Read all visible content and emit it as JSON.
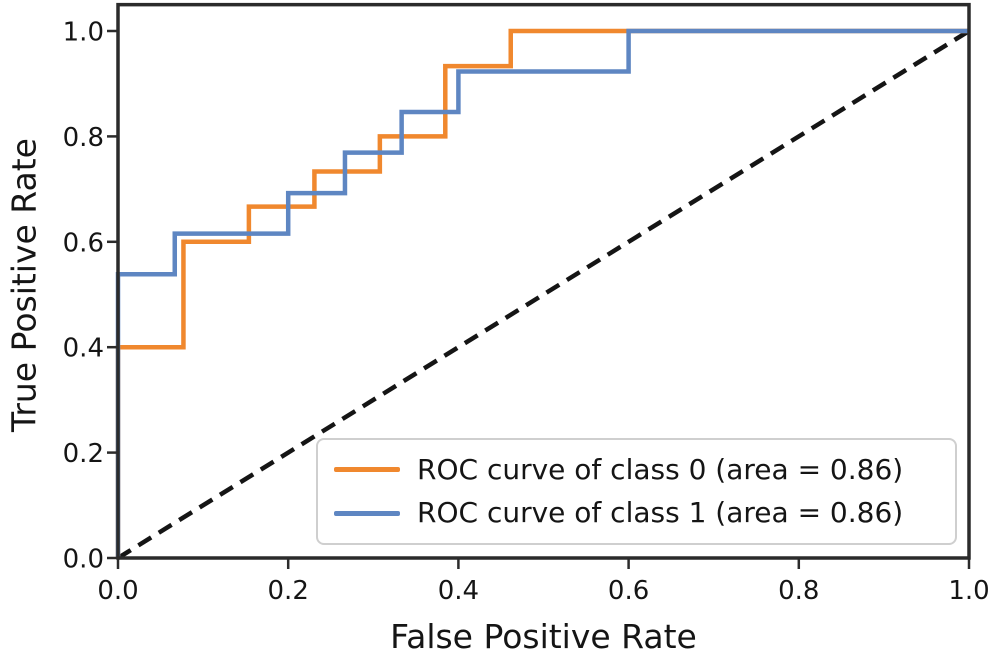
{
  "figure": {
    "background": "#ffffff",
    "axis_color": "#2b2b2b",
    "text_color": "#151515"
  },
  "chart_data": {
    "type": "line",
    "subtype": "roc_step_curves",
    "title": "",
    "xlabel": "False Positive Rate",
    "ylabel": "True Positive Rate",
    "xlim": [
      0.0,
      1.0
    ],
    "ylim": [
      0.0,
      1.05
    ],
    "grid": false,
    "x_ticks": [
      {
        "value": 0.0,
        "label": "0.0"
      },
      {
        "value": 0.2,
        "label": "0.2"
      },
      {
        "value": 0.4,
        "label": "0.4"
      },
      {
        "value": 0.6,
        "label": "0.6"
      },
      {
        "value": 0.8,
        "label": "0.8"
      },
      {
        "value": 1.0,
        "label": "1.0"
      }
    ],
    "y_ticks": [
      {
        "value": 0.0,
        "label": "0.0"
      },
      {
        "value": 0.2,
        "label": "0.2"
      },
      {
        "value": 0.4,
        "label": "0.4"
      },
      {
        "value": 0.6,
        "label": "0.6"
      },
      {
        "value": 0.8,
        "label": "0.8"
      },
      {
        "value": 1.0,
        "label": "1.0"
      }
    ],
    "legend": {
      "location": "lower right",
      "border_color": "#cfcfcf",
      "background": "#ffffff"
    },
    "reference_line": {
      "name": "chance-diagonal",
      "style": "dashed",
      "color": "#151515",
      "points": [
        [
          0.0,
          0.0
        ],
        [
          1.0,
          1.0
        ]
      ]
    },
    "series": [
      {
        "name": "class-0",
        "legend_label": "ROC curve of class 0 (area = 0.86)",
        "area": 0.86,
        "color": "#f0882e",
        "points": [
          [
            0.0,
            0.0
          ],
          [
            0.0,
            0.4
          ],
          [
            0.0769,
            0.4
          ],
          [
            0.0769,
            0.6
          ],
          [
            0.1538,
            0.6
          ],
          [
            0.1538,
            0.6667
          ],
          [
            0.2308,
            0.6667
          ],
          [
            0.2308,
            0.7333
          ],
          [
            0.3077,
            0.7333
          ],
          [
            0.3077,
            0.8
          ],
          [
            0.3846,
            0.8
          ],
          [
            0.3846,
            0.9333
          ],
          [
            0.4615,
            0.9333
          ],
          [
            0.4615,
            1.0
          ],
          [
            1.0,
            1.0
          ]
        ]
      },
      {
        "name": "class-1",
        "legend_label": "ROC curve of class 1 (area = 0.86)",
        "area": 0.86,
        "color": "#5e86c2",
        "points": [
          [
            0.0,
            0.0
          ],
          [
            0.0,
            0.5385
          ],
          [
            0.0667,
            0.5385
          ],
          [
            0.0667,
            0.6154
          ],
          [
            0.2,
            0.6154
          ],
          [
            0.2,
            0.6923
          ],
          [
            0.2667,
            0.6923
          ],
          [
            0.2667,
            0.7692
          ],
          [
            0.3333,
            0.7692
          ],
          [
            0.3333,
            0.8462
          ],
          [
            0.4,
            0.8462
          ],
          [
            0.4,
            0.9231
          ],
          [
            0.6,
            0.9231
          ],
          [
            0.6,
            1.0
          ],
          [
            1.0,
            1.0
          ]
        ]
      }
    ]
  }
}
